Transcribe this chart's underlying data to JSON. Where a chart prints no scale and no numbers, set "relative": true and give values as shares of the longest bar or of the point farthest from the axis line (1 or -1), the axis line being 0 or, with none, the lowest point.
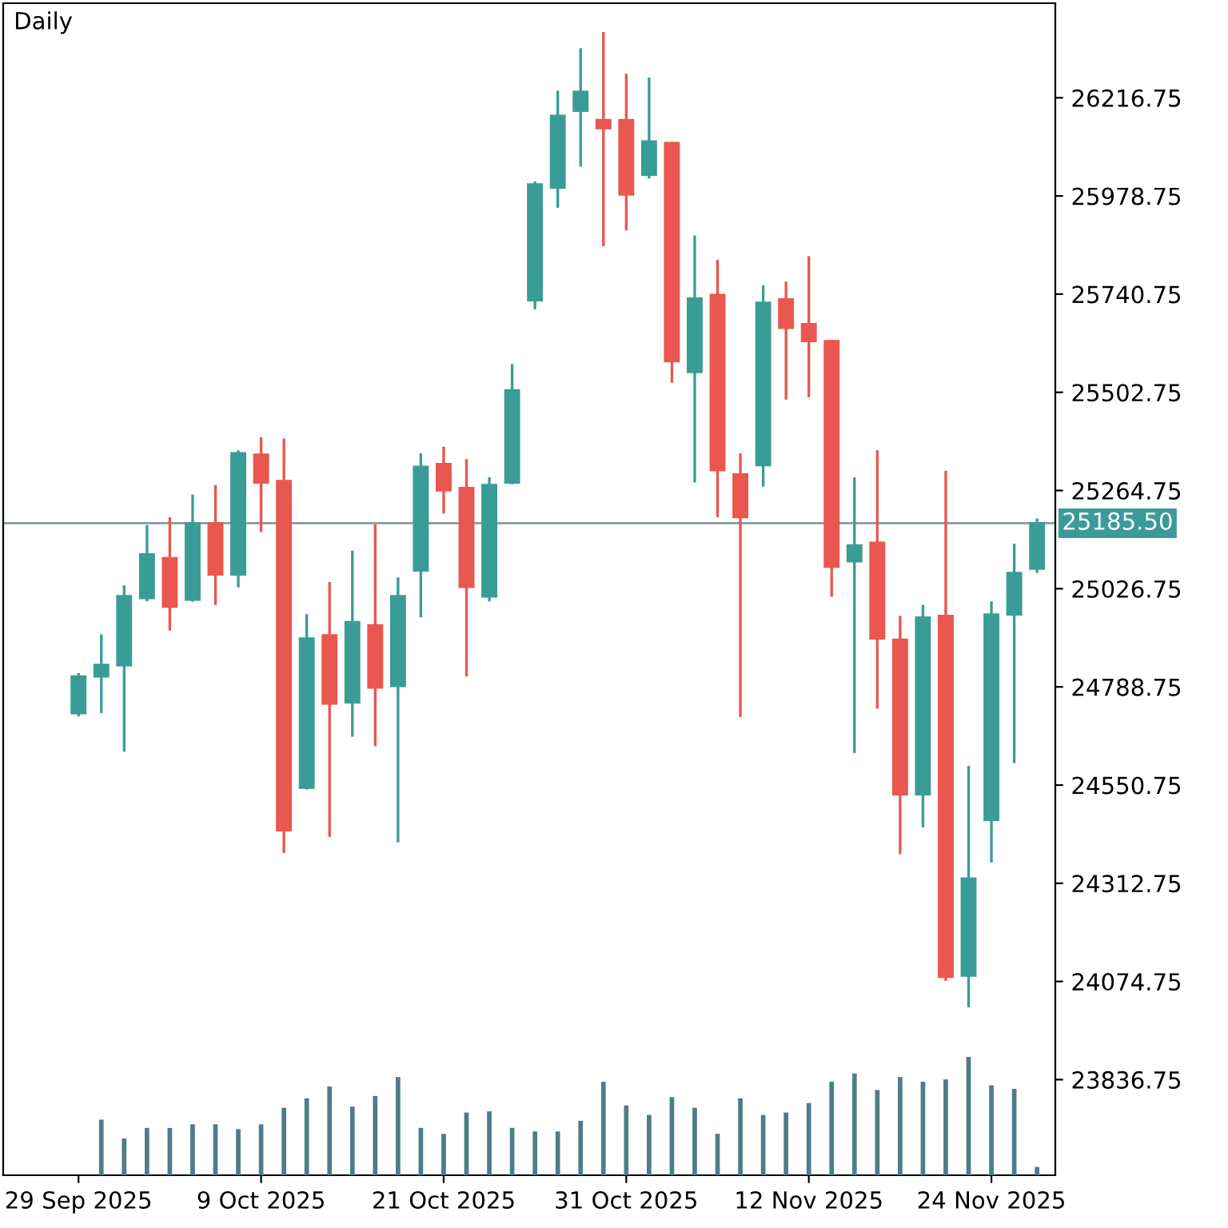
{
  "chart_data": [
    {
      "type": "candlestick",
      "title": "Daily",
      "categories": [
        "29 Sep 2025",
        null,
        null,
        null,
        null,
        null,
        null,
        null,
        "9 Oct 2025",
        null,
        null,
        null,
        null,
        null,
        null,
        null,
        "21 Oct 2025",
        null,
        null,
        null,
        null,
        null,
        null,
        null,
        "31 Oct 2025",
        null,
        null,
        null,
        null,
        null,
        null,
        null,
        "12 Nov 2025",
        null,
        null,
        null,
        null,
        null,
        null,
        null,
        "24 Nov 2025",
        null,
        null
      ],
      "ohlc": [
        [
          24725,
          24822,
          24717,
          24814
        ],
        [
          24814,
          24916,
          24725,
          24842
        ],
        [
          24841,
          25035,
          24632,
          25009
        ],
        [
          25004,
          25181,
          24996,
          25110
        ],
        [
          25101,
          25200,
          24925,
          24983
        ],
        [
          25000,
          25255,
          24995,
          25185
        ],
        [
          25185,
          25278,
          24987,
          25061
        ],
        [
          25061,
          25362,
          25030,
          25355
        ],
        [
          25352,
          25394,
          25164,
          25284
        ],
        [
          25288,
          25391,
          24386,
          24441
        ],
        [
          24544,
          24965,
          24540,
          24906
        ],
        [
          24914,
          25043,
          24425,
          24748
        ],
        [
          24751,
          25119,
          24668,
          24946
        ],
        [
          24938,
          25183,
          24645,
          24787
        ],
        [
          24791,
          25054,
          24412,
          25009
        ],
        [
          25071,
          25355,
          24957,
          25322
        ],
        [
          25329,
          25371,
          25209,
          25265
        ],
        [
          25271,
          25341,
          24814,
          25031
        ],
        [
          25008,
          25297,
          24996,
          25278
        ],
        [
          25284,
          25571,
          25280,
          25508
        ],
        [
          25726,
          26014,
          25704,
          26007
        ],
        [
          25999,
          26234,
          25950,
          26173
        ],
        [
          26185,
          26337,
          26050,
          26231
        ],
        [
          26163,
          26376,
          25857,
          26143
        ],
        [
          26163,
          26275,
          25895,
          25982
        ],
        [
          26030,
          26266,
          26021,
          26111
        ],
        [
          26107,
          26110,
          25526,
          25578
        ],
        [
          25552,
          25883,
          25284,
          25730
        ],
        [
          25739,
          25824,
          25200,
          25314
        ],
        [
          25304,
          25355,
          24716,
          25200
        ],
        [
          25326,
          25762,
          25274,
          25720
        ],
        [
          25728,
          25771,
          25485,
          25659
        ],
        [
          25668,
          25833,
          25491,
          25627
        ],
        [
          25627,
          25630,
          25007,
          25080
        ],
        [
          25093,
          25297,
          24628,
          25132
        ],
        [
          25138,
          25362,
          24736,
          24906
        ],
        [
          24903,
          24961,
          24383,
          24528
        ],
        [
          24528,
          24987,
          24448,
          24957
        ],
        [
          24961,
          25313,
          24076,
          24086
        ],
        [
          24089,
          24597,
          24012,
          24324
        ],
        [
          24466,
          24996,
          24363,
          24964
        ],
        [
          24964,
          25136,
          24604,
          25065
        ],
        [
          25075,
          25197,
          25065,
          25185.5
        ]
      ],
      "colors": [
        "#3a9c96",
        "#3a9c96",
        "#3a9c96",
        "#3a9c96",
        "#e9574f",
        "#3a9c96",
        "#e9574f",
        "#3a9c96",
        "#e9574f",
        "#e9574f",
        "#3a9c96",
        "#e9574f",
        "#3a9c96",
        "#e9574f",
        "#3a9c96",
        "#3a9c96",
        "#e9574f",
        "#e9574f",
        "#3a9c96",
        "#3a9c96",
        "#3a9c96",
        "#3a9c96",
        "#3a9c96",
        "#e9574f",
        "#e9574f",
        "#3a9c96",
        "#e9574f",
        "#3a9c96",
        "#e9574f",
        "#e9574f",
        "#3a9c96",
        "#e9574f",
        "#e9574f",
        "#e9574f",
        "#3a9c96",
        "#e9574f",
        "#e9574f",
        "#3a9c96",
        "#e9574f",
        "#3a9c96",
        "#3a9c96",
        "#3a9c96",
        "#3a9c96"
      ],
      "ylim": [
        23605,
        26446
      ],
      "yticks": [
        23836.75,
        24074.75,
        24312.75,
        24550.75,
        24788.75,
        25026.75,
        25264.75,
        25502.75,
        25740.75,
        25978.75,
        26216.75
      ],
      "ref_lines": [
        {
          "axis": "y",
          "value": 25185.5,
          "label": "25185.50",
          "color": "#8a9aa6"
        }
      ],
      "grid": false
    },
    {
      "type": "bar",
      "relative": true,
      "color": "#4e7c89",
      "categories": [
        null,
        null,
        null,
        null,
        null,
        null,
        null,
        null,
        null,
        null,
        null,
        null,
        null,
        null,
        null,
        null,
        null,
        null,
        null,
        null,
        null,
        null,
        null,
        null,
        null,
        null,
        null,
        null,
        null,
        null,
        null,
        null,
        null,
        null,
        null,
        null,
        null,
        null,
        null,
        null,
        null,
        null,
        null
      ],
      "values": [
        null,
        0.47,
        0.31,
        0.4,
        0.4,
        0.43,
        0.43,
        0.39,
        0.43,
        0.57,
        0.65,
        0.75,
        0.58,
        0.67,
        0.83,
        0.4,
        0.35,
        0.53,
        0.54,
        0.4,
        0.37,
        0.37,
        0.46,
        0.79,
        0.59,
        0.51,
        0.66,
        0.57,
        0.35,
        0.65,
        0.51,
        0.53,
        0.61,
        0.79,
        0.86,
        0.72,
        0.83,
        0.79,
        0.81,
        1,
        0.76,
        0.73,
        0.07
      ]
    }
  ]
}
